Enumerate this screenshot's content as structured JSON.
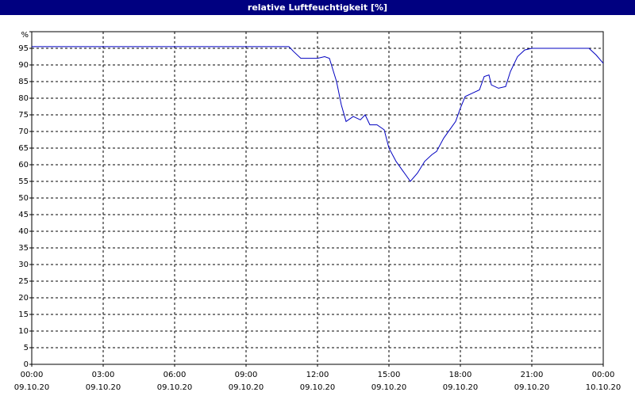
{
  "chart_data": {
    "type": "line",
    "title": "relative Luftfeuchtigkeit [%]",
    "x": [
      0,
      10.8,
      11.0,
      11.3,
      12.0,
      12.3,
      12.5,
      12.8,
      13.0,
      13.2,
      13.5,
      13.8,
      14.0,
      14.2,
      14.5,
      14.8,
      15.0,
      15.3,
      15.6,
      15.9,
      16.2,
      16.5,
      16.8,
      17.0,
      17.3,
      17.6,
      17.8,
      18.0,
      18.2,
      18.5,
      18.8,
      19.0,
      19.2,
      19.3,
      19.6,
      19.9,
      20.1,
      20.4,
      20.7,
      21.0,
      22.0,
      23.4,
      23.7,
      24.0
    ],
    "series": [
      {
        "color": "#0000c0",
        "values": [
          95.5,
          95.5,
          94,
          92,
          92,
          92.5,
          92,
          85,
          78,
          73,
          74.5,
          73.5,
          75,
          72,
          72,
          70.5,
          65,
          61,
          58,
          55,
          57.5,
          61,
          63,
          64,
          68,
          71,
          73,
          77,
          80.5,
          81.5,
          82.5,
          86.5,
          87,
          84,
          83,
          83.5,
          88,
          92.5,
          94.5,
          95,
          95,
          95,
          93,
          90.5
        ]
      }
    ],
    "xlim": [
      0,
      24
    ],
    "xticks": [
      {
        "value": 0,
        "label": "00:00"
      },
      {
        "value": 3,
        "label": "03:00"
      },
      {
        "value": 6,
        "label": "06:00"
      },
      {
        "value": 9,
        "label": "09:00"
      },
      {
        "value": 12,
        "label": "12:00"
      },
      {
        "value": 15,
        "label": "15:00"
      },
      {
        "value": 18,
        "label": "18:00"
      },
      {
        "value": 21,
        "label": "21:00"
      },
      {
        "value": 24,
        "label": "00:00"
      }
    ],
    "xtick_dates": [
      "09.10.20",
      "09.10.20",
      "09.10.20",
      "09.10.20",
      "09.10.20",
      "09.10.20",
      "09.10.20",
      "09.10.20",
      "10.10.20"
    ],
    "ylim": [
      0,
      100
    ],
    "yticks": [
      0,
      5,
      10,
      15,
      20,
      25,
      30,
      35,
      40,
      45,
      50,
      55,
      60,
      65,
      70,
      75,
      80,
      85,
      90,
      95,
      {
        "value": 100,
        "label": "%"
      }
    ],
    "grid": true
  }
}
